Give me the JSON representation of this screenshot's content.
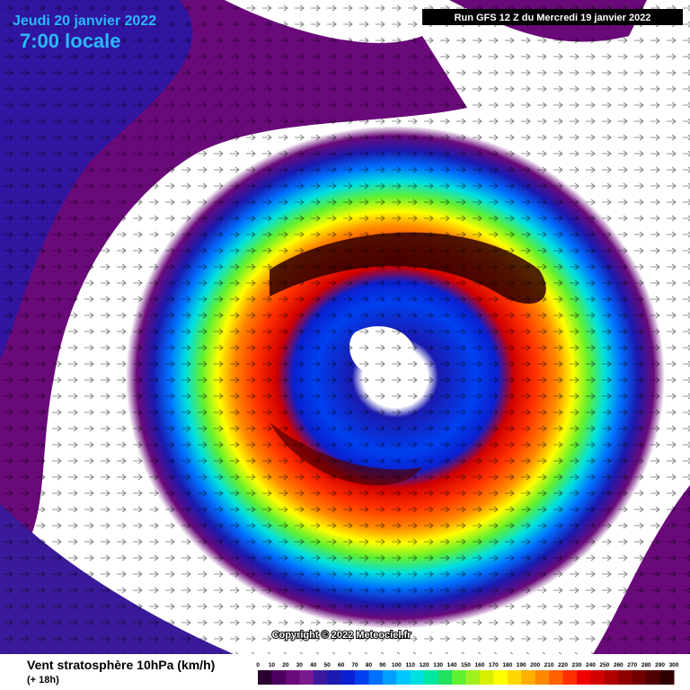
{
  "header": {
    "date": "Jeudi 20 janvier 2022",
    "time": "7:00 locale",
    "run": "Run GFS 12 Z du Mercredi 19 janvier 2022"
  },
  "map": {
    "copyright": "Copyright © 2022 Meteociel.fr"
  },
  "legend": {
    "title": "Vent stratosphère 10hPa (km/h)",
    "subtitle": "(+ 18h)",
    "ticks": [
      0,
      10,
      20,
      30,
      40,
      50,
      60,
      70,
      80,
      90,
      100,
      110,
      120,
      130,
      140,
      150,
      160,
      170,
      180,
      190,
      200,
      210,
      220,
      230,
      240,
      250,
      260,
      270,
      280,
      290,
      300
    ],
    "colors": [
      "#2a0030",
      "#4b0060",
      "#6a0a7a",
      "#7a1a8e",
      "#3a1a9a",
      "#1a1ab0",
      "#0a20d0",
      "#0040f0",
      "#0070ff",
      "#00a0ff",
      "#00c8ff",
      "#00e0e0",
      "#00e8a0",
      "#20e060",
      "#60f030",
      "#a0f020",
      "#d8f000",
      "#ffff00",
      "#ffd800",
      "#ffb000",
      "#ff8800",
      "#ff6000",
      "#ff3000",
      "#f00000",
      "#d00000",
      "#b00000",
      "#900000",
      "#700000",
      "#500000",
      "#300000"
    ]
  }
}
